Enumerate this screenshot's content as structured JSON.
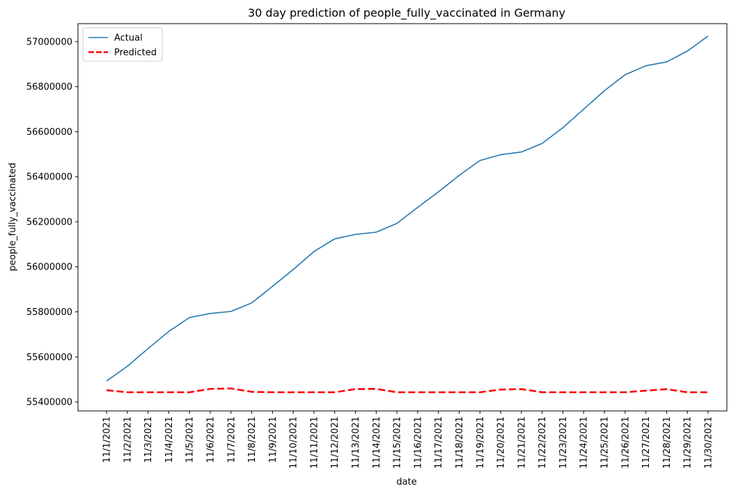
{
  "chart_data": {
    "type": "line",
    "title": "30 day prediction of people_fully_vaccinated in Germany",
    "xlabel": "date",
    "ylabel": "people_fully_vaccinated",
    "legend_position": "top-left",
    "grid": false,
    "ylim": [
      55360000,
      57080000
    ],
    "yticks": [
      55400000,
      55600000,
      55800000,
      56000000,
      56200000,
      56400000,
      56600000,
      56800000,
      57000000
    ],
    "x": [
      "11/1/2021",
      "11/2/2021",
      "11/3/2021",
      "11/4/2021",
      "11/5/2021",
      "11/6/2021",
      "11/7/2021",
      "11/8/2021",
      "11/9/2021",
      "11/10/2021",
      "11/11/2021",
      "11/12/2021",
      "11/13/2021",
      "11/14/2021",
      "11/15/2021",
      "11/16/2021",
      "11/17/2021",
      "11/18/2021",
      "11/19/2021",
      "11/20/2021",
      "11/21/2021",
      "11/22/2021",
      "11/23/2021",
      "11/24/2021",
      "11/25/2021",
      "11/26/2021",
      "11/27/2021",
      "11/28/2021",
      "11/29/2021",
      "11/30/2021"
    ],
    "series": [
      {
        "name": "Actual",
        "color": "#1f77b4",
        "style": "solid",
        "values": [
          55493000,
          55558000,
          55637000,
          55713000,
          55775000,
          55793000,
          55802000,
          55840000,
          55913000,
          55988000,
          56068000,
          56124000,
          56144000,
          56154000,
          56193000,
          56264000,
          56333000,
          56406000,
          56472000,
          56498000,
          56510000,
          56548000,
          56618000,
          56700000,
          56782000,
          56853000,
          56893000,
          56910000,
          56958000,
          57025000
        ]
      },
      {
        "name": "Predicted",
        "color": "#ff0000",
        "style": "dashed",
        "values": [
          55452000,
          55443000,
          55443000,
          55443000,
          55443000,
          55458000,
          55460000,
          55445000,
          55443000,
          55443000,
          55443000,
          55443000,
          55457000,
          55458000,
          55443000,
          55443000,
          55443000,
          55443000,
          55443000,
          55455000,
          55457000,
          55443000,
          55443000,
          55443000,
          55443000,
          55443000,
          55450000,
          55457000,
          55443000,
          55443000
        ]
      }
    ]
  }
}
